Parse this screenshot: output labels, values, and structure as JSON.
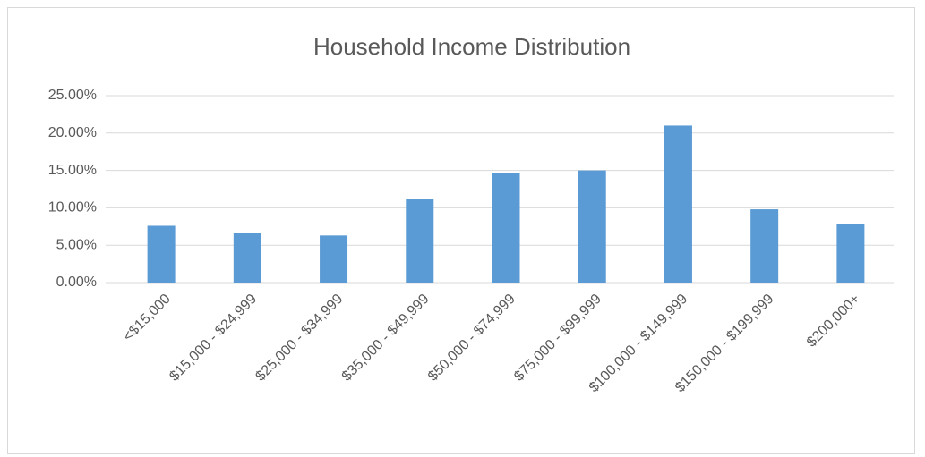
{
  "chart_data": {
    "type": "bar",
    "title": "Household Income Distribution",
    "categories": [
      "<$15,000",
      "$15,000 - $24,999",
      "$25,000 - $34,999",
      "$35,000 - $49,999",
      "$50,000 - $74,999",
      "$75,000 - $99,999",
      "$100,000 - $149,999",
      "$150,000 - $199,999",
      "$200,000+"
    ],
    "values": [
      7.6,
      6.7,
      6.3,
      11.2,
      14.6,
      15.0,
      21.0,
      9.8,
      7.8
    ],
    "color": "#5b9bd5",
    "ylim": [
      0,
      25
    ],
    "yticks": [
      {
        "value": 0,
        "label": "0.00%"
      },
      {
        "value": 5,
        "label": "5.00%"
      },
      {
        "value": 10,
        "label": "10.00%"
      },
      {
        "value": 15,
        "label": "15.00%"
      },
      {
        "value": 20,
        "label": "20.00%"
      },
      {
        "value": 25,
        "label": "25.00%"
      }
    ],
    "grid": true
  }
}
